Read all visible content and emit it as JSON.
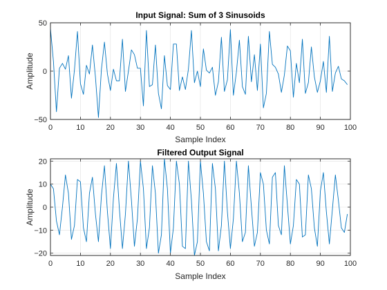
{
  "colors": {
    "series": "#0072BD",
    "axes": "#262626",
    "grid": "#dfdfdf",
    "background": "#ffffff"
  },
  "chart_data": [
    {
      "type": "line",
      "title": "Input Signal: Sum of 3 Sinusoids",
      "xlabel": "Sample Index",
      "ylabel": "Amplitude",
      "xlim": [
        0,
        100
      ],
      "ylim": [
        -50,
        50
      ],
      "xticks": [
        0,
        10,
        20,
        30,
        40,
        50,
        60,
        70,
        80,
        90,
        100
      ],
      "yticks": [
        -50,
        0,
        50
      ],
      "grid": true,
      "series": [
        {
          "x": [
            0,
            1,
            2,
            3,
            4,
            5,
            6,
            7,
            8,
            9,
            10,
            11,
            12,
            13,
            14,
            15,
            16,
            17,
            18,
            19,
            20,
            21,
            22,
            23,
            24,
            25,
            26,
            27,
            28,
            29,
            30,
            31,
            32,
            33,
            34,
            35,
            36,
            37,
            38,
            39,
            40,
            41,
            42,
            43,
            44,
            45,
            46,
            47,
            48,
            49,
            50,
            51,
            52,
            53,
            54,
            55,
            56,
            57,
            58,
            59,
            60,
            61,
            62,
            63,
            64,
            65,
            66,
            67,
            68,
            69,
            70,
            71,
            72,
            73,
            74,
            75,
            76,
            77,
            78,
            79,
            80,
            81,
            82,
            83,
            84,
            85,
            86,
            87,
            88,
            89,
            90,
            91,
            92,
            93,
            94,
            95,
            96,
            97,
            98,
            99
          ],
          "values": [
            44,
            10,
            -42,
            3,
            8,
            2,
            16,
            -28,
            1,
            41,
            -13,
            -24,
            6,
            -3,
            27,
            -6,
            -48,
            2,
            30,
            -3,
            -20,
            2,
            -10,
            -10,
            33,
            -21,
            0,
            22,
            17,
            3,
            3,
            -36,
            42,
            -16,
            -14,
            27,
            -23,
            -39,
            16,
            -15,
            -19,
            28,
            28,
            -20,
            -6,
            -19,
            2,
            42,
            -12,
            0,
            -16,
            23,
            1,
            -2,
            4,
            -25,
            -11,
            35,
            -21,
            -9,
            43,
            -25,
            -1,
            32,
            -16,
            -24,
            36,
            -11,
            17,
            -20,
            28,
            -38,
            -23,
            41,
            7,
            4,
            -3,
            -22,
            -4,
            26,
            21,
            -27,
            8,
            -12,
            33,
            -23,
            -12,
            25,
            -6,
            -22,
            -10,
            10,
            -22,
            36,
            -21,
            -2,
            5,
            -8,
            -10,
            -14
          ]
        }
      ]
    },
    {
      "type": "line",
      "title": "Filtered Output Signal",
      "xlabel": "Sample Index",
      "ylabel": "Amplitude",
      "xlim": [
        0,
        100
      ],
      "ylim": [
        -21,
        21
      ],
      "xticks": [
        0,
        10,
        20,
        30,
        40,
        50,
        60,
        70,
        80,
        90,
        100
      ],
      "yticks": [
        -20,
        -10,
        0,
        10,
        20
      ],
      "grid": true,
      "series": [
        {
          "x": [
            0,
            1,
            2,
            3,
            4,
            5,
            6,
            7,
            8,
            9,
            10,
            11,
            12,
            13,
            14,
            15,
            16,
            17,
            18,
            19,
            20,
            21,
            22,
            23,
            24,
            25,
            26,
            27,
            28,
            29,
            30,
            31,
            32,
            33,
            34,
            35,
            36,
            37,
            38,
            39,
            40,
            41,
            42,
            43,
            44,
            45,
            46,
            47,
            48,
            49,
            50,
            51,
            52,
            53,
            54,
            55,
            56,
            57,
            58,
            59,
            60,
            61,
            62,
            63,
            64,
            65,
            66,
            67,
            68,
            69,
            70,
            71,
            72,
            73,
            74,
            75,
            76,
            77,
            78,
            79,
            80,
            81,
            82,
            83,
            84,
            85,
            86,
            87,
            88,
            89,
            90,
            91,
            92,
            93,
            94,
            95,
            96,
            97,
            98,
            99
          ],
          "values": [
            10,
            8,
            -6,
            -12,
            0,
            14,
            6,
            -14,
            -8,
            12,
            11,
            -9,
            -15,
            6,
            13,
            -3,
            -15,
            5,
            18,
            -2,
            -18,
            4,
            19,
            -1,
            -18,
            -3,
            20,
            3,
            -17,
            -5,
            20,
            8,
            -18,
            -9,
            18,
            6,
            -20,
            -12,
            21,
            8,
            -20,
            -9,
            20,
            10,
            -17,
            -18,
            20,
            3,
            -21,
            -15,
            20,
            6,
            -15,
            -19,
            19,
            8,
            -19,
            -8,
            20,
            -2,
            -18,
            -5,
            20,
            6,
            -15,
            -11,
            18,
            0,
            -17,
            -11,
            15,
            10,
            -10,
            -16,
            13,
            15,
            -8,
            -12,
            18,
            1,
            -16,
            -8,
            12,
            10,
            -13,
            -12,
            14,
            8,
            -9,
            -17,
            7,
            15,
            -2,
            -16,
            -1,
            14,
            3,
            -9,
            -11,
            -3
          ]
        }
      ]
    }
  ]
}
